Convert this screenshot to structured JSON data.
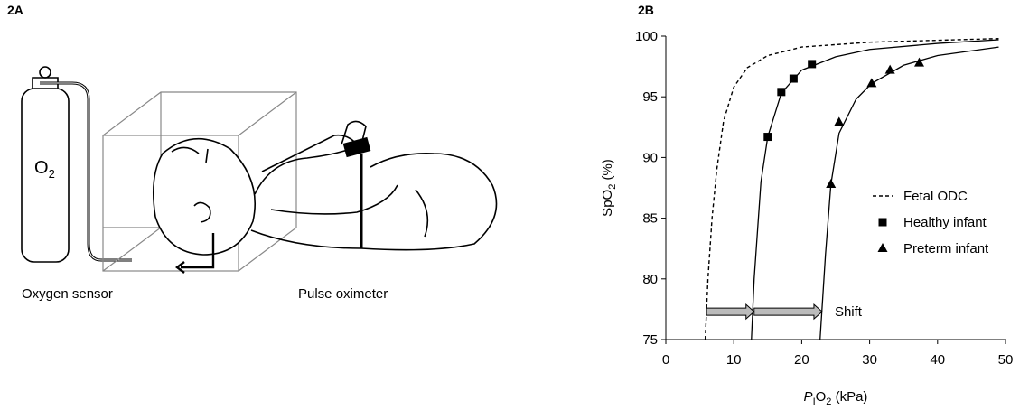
{
  "panel_a": {
    "label": "2A",
    "cylinder_label_parts": [
      "O",
      "2"
    ],
    "sensor_label": "Oxygen sensor",
    "oximeter_label": "Pulse oximeter"
  },
  "chart_data": {
    "type": "line",
    "panel_label": "2B",
    "xlabel_parts": [
      "P",
      "I",
      "O",
      "2",
      " (kPa)"
    ],
    "ylabel_parts": [
      "SpO",
      "2",
      " (%)"
    ],
    "xlim": [
      0,
      50
    ],
    "xticks": [
      0,
      10,
      20,
      30,
      40,
      50
    ],
    "ylim": [
      75,
      100
    ],
    "yticks": [
      75,
      80,
      85,
      90,
      95,
      100
    ],
    "series": [
      {
        "name": "Fetal ODC",
        "color": "#000000",
        "dash": true,
        "x": [
          5.8,
          6.2,
          6.8,
          7.5,
          8.5,
          10,
          12,
          15,
          20,
          30,
          49
        ],
        "values": [
          75,
          80,
          85,
          89,
          93,
          95.8,
          97.4,
          98.4,
          99.1,
          99.5,
          99.8
        ]
      },
      {
        "name": "Healthy infant",
        "color": "#000000",
        "marker": "square",
        "x": [
          15,
          17,
          18.8,
          21.5
        ],
        "values": [
          91.7,
          95.4,
          96.5,
          97.7
        ],
        "fit_x": [
          12.6,
          13,
          14,
          15,
          17,
          20,
          25,
          30,
          40,
          49
        ],
        "fit_values": [
          75,
          80,
          88,
          91.7,
          95.3,
          97.2,
          98.3,
          98.9,
          99.4,
          99.7
        ]
      },
      {
        "name": "Preterm infant",
        "color": "#000000",
        "marker": "triangle",
        "x": [
          24.3,
          25.5,
          30.3,
          33,
          37.3
        ],
        "values": [
          87.8,
          92.9,
          96.1,
          97.2,
          97.8
        ],
        "fit_x": [
          22.7,
          23.5,
          24.3,
          25.5,
          28,
          30.3,
          35,
          40,
          49
        ],
        "fit_values": [
          75,
          82,
          87.8,
          92,
          94.8,
          96.1,
          97.6,
          98.4,
          99.1
        ]
      }
    ],
    "annotation": {
      "text": "Shift",
      "y": 77.3,
      "arrows": [
        [
          6,
          13
        ],
        [
          13,
          23
        ]
      ]
    }
  }
}
